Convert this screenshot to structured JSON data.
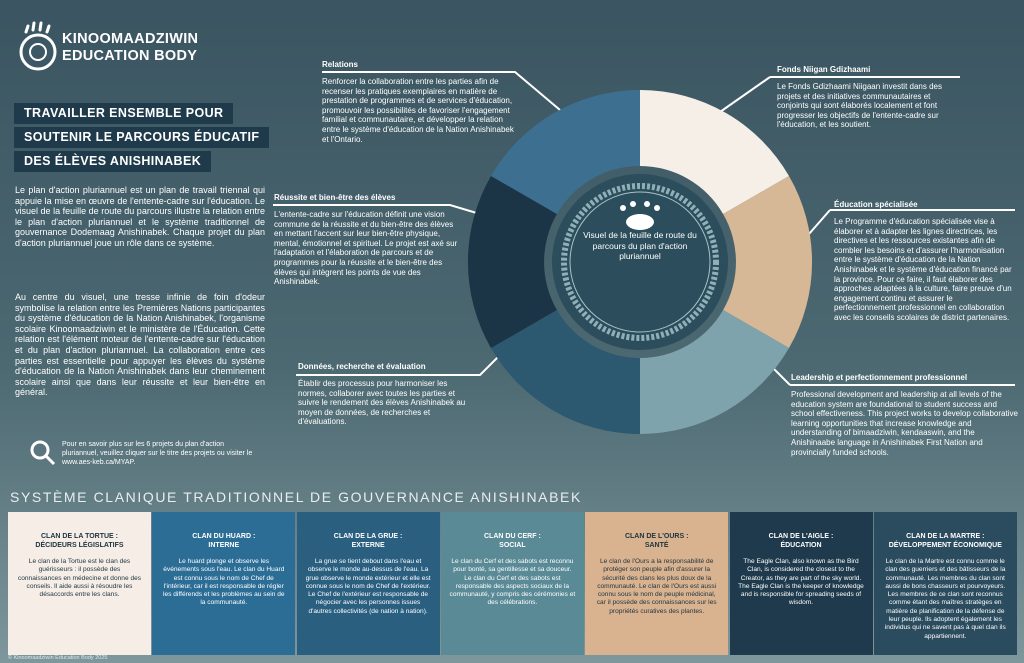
{
  "header": {
    "brand": [
      "KINOOMAADZIWIN",
      "EDUCATION BODY"
    ],
    "title": [
      "TRAVAILLER ENSEMBLE POUR",
      "SOUTENIR LE PARCOURS ÉDUCATIF",
      "DES ÉLÈVES ANISHINABEK"
    ]
  },
  "intro": [
    "Le plan d'action pluriannuel est un plan de travail triennal qui appuie la mise en œuvre de l'entente-cadre sur l'éducation. Le visuel de la feuille de route du parcours illustre la relation entre le plan d'action pluriannuel et le système traditionnel de gouvernance Dodemaag Anishinabek. Chaque projet du plan d'action pluriannuel joue un rôle dans ce système.",
    "Au centre du visuel, une tresse infinie de foin d'odeur symbolise la relation entre les Premières Nations participantes du système d'éducation de la Nation Anishinabek, l'organisme scolaire Kinoomaadziwin et le ministère de l'Éducation. Cette relation est l'élément moteur de l'entente-cadre sur l'éducation et du plan d'action pluriannuel. La collaboration entre ces parties est essentielle pour appuyer les élèves du système d'éducation de la Nation Anishinabek dans leur cheminement scolaire ainsi que dans leur réussite et leur bien-être en général."
  ],
  "more_info": "Pour en savoir plus sur les 6 projets du plan d'action pluriannuel, veuillez cliquer sur le titre des projets ou visiter le www.aes-keb.ca/MYAP.",
  "center": "Visuel de la feuille de route du parcours du plan d'action pluriannuel",
  "sections": [
    {
      "title": "Relations",
      "body": "Renforcer la collaboration entre les parties afin de recenser les pratiques exemplaires en matière de prestation de programmes et de services d'éducation, promouvoir les possibilités de favoriser l'engagement familial et communautaire, et développer la relation entre le système d'éducation de la Nation Anishinabek et l'Ontario."
    },
    {
      "title": "Fonds Niigan Gdizhaami",
      "body": "Le Fonds Gdizhaami Niigaan investit dans des projets et des initiatives communautaires et conjoints qui sont élaborés localement et font progresser les objectifs de l'entente-cadre sur l'éducation, et les soutient."
    },
    {
      "title": "Réussite et bien-être des élèves",
      "body": "L'entente-cadre sur l'éducation définit une vision commune de la réussite et du bien-être des élèves en mettant l'accent sur leur bien-être physique, mental, émotionnel et spirituel. Le projet est axé sur l'adaptation et l'élaboration de parcours et de programmes pour la réussite et le bien-être des élèves qui intègrent les points de vue des Anishinabek."
    },
    {
      "title": "Éducation spécialisée",
      "body": "Le Programme d'éducation spécialisée vise à élaborer et à adapter les lignes directrices, les directives et les ressources existantes afin de combler les besoins et d'assurer l'harmonisation entre le système d'éducation de la Nation Anishinabek et le système d'éducation financé par la province. Pour ce faire, il faut élaborer des approches adaptées à la culture, faire preuve d'un engagement continu et assurer le perfectionnement professionnel en collaboration avec les conseils scolaires de district partenaires."
    },
    {
      "title": "Données, recherche et évaluation",
      "body": "Établir des processus pour harmoniser les normes, collaborer avec toutes les parties et suivre le rendement des élèves Anishinabek au moyen de données, de recherches et d'évaluations."
    },
    {
      "title": "Leadership et perfectionnement professionnel",
      "body": "Professional development and leadership at all levels of the education system are foundational to student success and school effectiveness. This project works to develop collaborative learning opportunities that increase knowledge and understanding of bimaadziwin, kendaaswin, and the Anishinaabe language in Anishinabek First Nation and provincially funded schools."
    }
  ],
  "clan_title": "SYSTÈME CLANIQUE TRADITIONNEL DE GOUVERNANCE ANISHINABEK",
  "clans": [
    {
      "title": [
        "CLAN DE LA TORTUE :",
        "DÉCIDEURS LÉGISLATIFS"
      ],
      "body": "Le clan de la Tortue est le clan des guérisseurs : il possède des connaissances en médecine et donne des conseils. Il aide aussi à résoudre les désaccords entre les clans."
    },
    {
      "title": [
        "CLAN DU HUARD :",
        "INTERNE"
      ],
      "body": "Le huard plonge et observe les événements sous l'eau. Le clan du Huard est connu sous le nom de Chef de l'intérieur, car il est responsable de régler les différends et les problèmes au sein de la communauté."
    },
    {
      "title": [
        "CLAN DE LA GRUE :",
        "EXTERNE"
      ],
      "body": "La grue se tient debout dans l'eau et observe le monde au-dessus de l'eau. La grue observe le monde extérieur et elle est connue sous le nom de Chef de l'extérieur. Le Chef de l'extérieur est responsable de négocier avec les personnes issues d'autres collectivités (de nation à nation)."
    },
    {
      "title": [
        "CLAN DU CERF :",
        "SOCIAL"
      ],
      "body": "Le clan du Cerf et des sabots est reconnu pour bonté, sa gentillesse et sa douceur. Le clan du Cerf et des sabots est responsable des aspects sociaux de la communauté, y compris des cérémonies et des célébrations."
    },
    {
      "title": [
        "CLAN DE L'OURS :",
        "SANTÉ"
      ],
      "body": "Le clan de l'Ours a la responsabilité de protéger son peuple afin d'assurer la sécurité des clans les plus doux de la communauté. Le clan de l'Ours est aussi connu sous le nom de peuple médicinal, car il possède des connaissances sur les propriétés curatives des plantes."
    },
    {
      "title": [
        "CLAN DE L'AIGLE :",
        "ÉDUCATION"
      ],
      "body": "The Eagle Clan, also known as the Bird Clan, is considered the closest to the Creator, as they are part of the sky world. The Eagle Clan is the keeper of knowledge and is responsible for spreading seeds of wisdom."
    },
    {
      "title": [
        "CLAN DE LA MARTRE :",
        "DÉVELOPPEMENT ÉCONOMIQUE"
      ],
      "body": "Le clan de la Martre est connu comme le clan des guerriers et des bâtisseurs de la communauté. Les membres du clan sont aussi de bons chasseurs et pourvoyeurs. Les membres de ce clan sont reconnus comme étant des maîtres stratèges en matière de planification de la défense de leur peuple. Ils adoptent également les individus qui ne savent pas à quel clan ils appartiennent."
    }
  ],
  "footer": "© Kinoomaadziwin Education Body 2025"
}
